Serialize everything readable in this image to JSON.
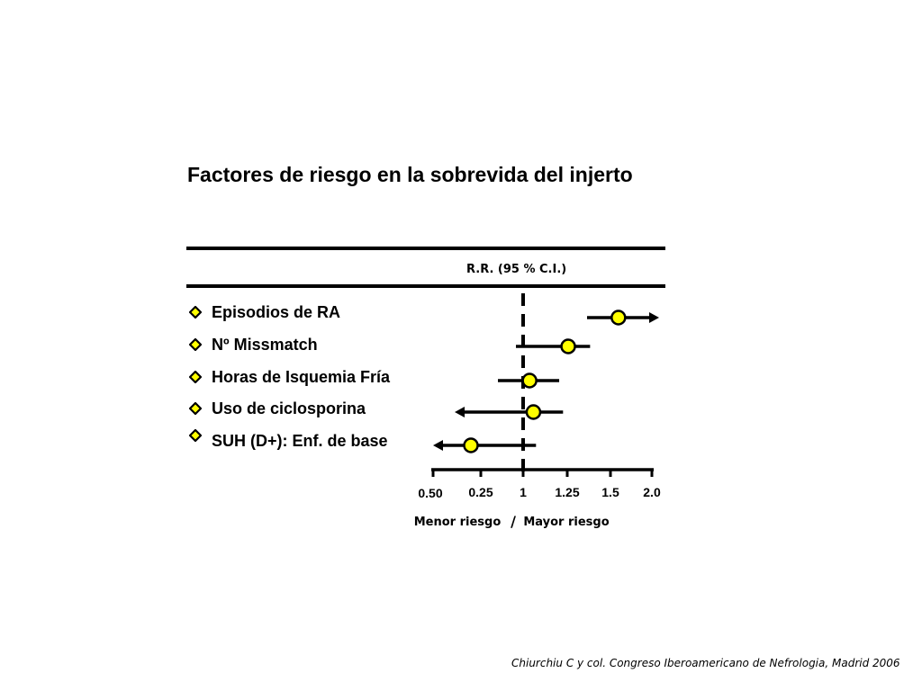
{
  "slide": {
    "title": "Factores de riesgo en la sobrevida del injerto",
    "footer": "Chiurchiu C y col.  Congreso Iberoamericano de Nefrologia, Madrid 2006"
  },
  "colors": {
    "marker_fill": "#ffff00",
    "line": "#000000",
    "bullet_fill": "#ffff00"
  },
  "chart_data": {
    "type": "forest",
    "header": "R.R. (95 % C.I.)",
    "reference_value": 1,
    "x_ticks": [
      "0.50",
      "0.25",
      "1",
      "1.25",
      "1.5",
      "2.0"
    ],
    "x_caption_left": "Menor riesgo",
    "x_caption_sep": "/",
    "x_caption_right": "Mayor riesgo",
    "rows": [
      {
        "label": "Episodios de RA",
        "estimate": 1.74,
        "lower": 1.5,
        "upper": 2.0,
        "arrow": "right"
      },
      {
        "label": "Nº Missmatch",
        "estimate": 1.35,
        "lower": 0.96,
        "upper": 1.52,
        "arrow": null
      },
      {
        "label": "Horas de Isquemia Fría",
        "estimate": 1.05,
        "lower": 0.86,
        "upper": 1.28,
        "arrow": null
      },
      {
        "label": "Uso de ciclosporina",
        "estimate": 1.08,
        "lower": 0.5,
        "upper": 1.31,
        "arrow": "left"
      },
      {
        "label": "SUH (D+): Enf. de base",
        "estimate": 0.71,
        "lower": 0.5,
        "upper": 1.1,
        "arrow": "left"
      }
    ]
  }
}
